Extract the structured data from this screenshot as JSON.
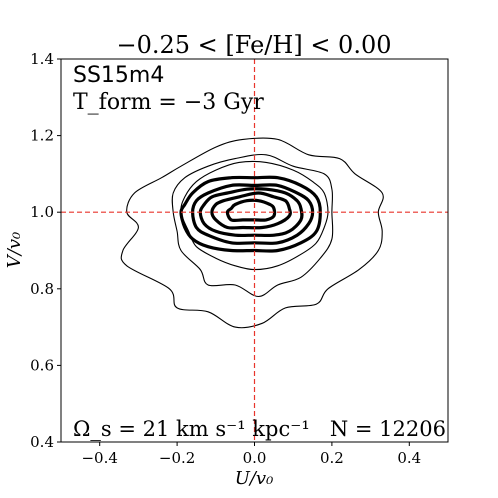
{
  "chart_data": {
    "type": "contour",
    "title": "−0.25 < [Fe/H] < 0.00",
    "xlabel": "U/v₀",
    "ylabel": "V/v₀",
    "xlim": [
      -0.5,
      0.5
    ],
    "ylim": [
      0.4,
      1.4
    ],
    "xticks": [
      -0.4,
      -0.2,
      0.0,
      0.2,
      0.4
    ],
    "xtick_labels": [
      "−0.4",
      "−0.2",
      "0.0",
      "0.2",
      "0.4"
    ],
    "yticks": [
      0.4,
      0.6,
      0.8,
      1.0,
      1.2,
      1.4
    ],
    "ytick_labels": [
      "0.4",
      "0.6",
      "0.8",
      "1.0",
      "1.2",
      "1.4"
    ],
    "grid": false,
    "reference_lines": {
      "vertical_x": 0.0,
      "horizontal_y": 1.0,
      "color": "#e8352b",
      "style": "dashed"
    },
    "annotations": {
      "model": "SS15m4",
      "tform": "T_form = −3 Gyr",
      "omega": "Ω_s = 21 km s⁻¹ kpc⁻¹",
      "n": "N = 12206"
    },
    "contour_color": "#000000",
    "contours": [
      {
        "weight": "thin",
        "points": [
          [
            -0.33,
            1.0
          ],
          [
            -0.3,
            0.96
          ],
          [
            -0.34,
            0.9
          ],
          [
            -0.33,
            0.86
          ],
          [
            -0.22,
            0.8
          ],
          [
            -0.2,
            0.75
          ],
          [
            -0.12,
            0.74
          ],
          [
            -0.05,
            0.7
          ],
          [
            0.02,
            0.71
          ],
          [
            0.08,
            0.75
          ],
          [
            0.16,
            0.76
          ],
          [
            0.19,
            0.8
          ],
          [
            0.27,
            0.85
          ],
          [
            0.32,
            0.9
          ],
          [
            0.33,
            0.95
          ],
          [
            0.32,
            1.0
          ],
          [
            0.33,
            1.05
          ],
          [
            0.26,
            1.1
          ],
          [
            0.22,
            1.14
          ],
          [
            0.14,
            1.15
          ],
          [
            0.06,
            1.19
          ],
          [
            -0.03,
            1.19
          ],
          [
            -0.1,
            1.17
          ],
          [
            -0.19,
            1.12
          ],
          [
            -0.24,
            1.09
          ],
          [
            -0.31,
            1.05
          ]
        ]
      },
      {
        "weight": "thin",
        "points": [
          [
            -0.21,
            1.0
          ],
          [
            -0.2,
            0.95
          ],
          [
            -0.19,
            0.9
          ],
          [
            -0.14,
            0.85
          ],
          [
            -0.12,
            0.81
          ],
          [
            -0.05,
            0.81
          ],
          [
            0.01,
            0.78
          ],
          [
            0.06,
            0.81
          ],
          [
            0.12,
            0.83
          ],
          [
            0.17,
            0.88
          ],
          [
            0.2,
            0.93
          ],
          [
            0.2,
            1.0
          ],
          [
            0.2,
            1.06
          ],
          [
            0.18,
            1.1
          ],
          [
            0.1,
            1.12
          ],
          [
            0.03,
            1.15
          ],
          [
            -0.05,
            1.14
          ],
          [
            -0.12,
            1.12
          ],
          [
            -0.18,
            1.09
          ],
          [
            -0.21,
            1.05
          ]
        ]
      },
      {
        "weight": "thin",
        "points": [
          [
            -0.19,
            1.0
          ],
          [
            -0.17,
            0.95
          ],
          [
            -0.15,
            0.91
          ],
          [
            -0.1,
            0.88
          ],
          [
            -0.05,
            0.86
          ],
          [
            0.0,
            0.85
          ],
          [
            0.06,
            0.86
          ],
          [
            0.12,
            0.89
          ],
          [
            0.16,
            0.92
          ],
          [
            0.18,
            0.96
          ],
          [
            0.19,
            1.0
          ],
          [
            0.18,
            1.05
          ],
          [
            0.15,
            1.08
          ],
          [
            0.1,
            1.11
          ],
          [
            0.03,
            1.13
          ],
          [
            -0.04,
            1.13
          ],
          [
            -0.1,
            1.11
          ],
          [
            -0.15,
            1.08
          ],
          [
            -0.18,
            1.04
          ]
        ]
      },
      {
        "weight": "thick",
        "points": [
          [
            -0.19,
            1.0
          ],
          [
            -0.18,
            0.96
          ],
          [
            -0.16,
            0.93
          ],
          [
            -0.12,
            0.91
          ],
          [
            -0.06,
            0.9
          ],
          [
            0.0,
            0.9
          ],
          [
            0.06,
            0.9
          ],
          [
            0.12,
            0.92
          ],
          [
            0.16,
            0.95
          ],
          [
            0.17,
            1.0
          ],
          [
            0.16,
            1.04
          ],
          [
            0.12,
            1.07
          ],
          [
            0.06,
            1.09
          ],
          [
            0.0,
            1.09
          ],
          [
            -0.06,
            1.09
          ],
          [
            -0.12,
            1.08
          ],
          [
            -0.16,
            1.05
          ],
          [
            -0.18,
            1.02
          ]
        ]
      },
      {
        "weight": "thick",
        "points": [
          [
            -0.16,
            1.0
          ],
          [
            -0.15,
            0.96
          ],
          [
            -0.12,
            0.94
          ],
          [
            -0.06,
            0.92
          ],
          [
            0.0,
            0.92
          ],
          [
            0.06,
            0.92
          ],
          [
            0.11,
            0.94
          ],
          [
            0.14,
            0.97
          ],
          [
            0.15,
            1.0
          ],
          [
            0.14,
            1.03
          ],
          [
            0.11,
            1.05
          ],
          [
            0.06,
            1.07
          ],
          [
            0.0,
            1.07
          ],
          [
            -0.06,
            1.07
          ],
          [
            -0.12,
            1.05
          ],
          [
            -0.15,
            1.03
          ]
        ]
      },
      {
        "weight": "thick",
        "points": [
          [
            -0.14,
            1.0
          ],
          [
            -0.13,
            0.97
          ],
          [
            -0.1,
            0.95
          ],
          [
            -0.05,
            0.94
          ],
          [
            0.0,
            0.94
          ],
          [
            0.05,
            0.94
          ],
          [
            0.09,
            0.95
          ],
          [
            0.12,
            0.98
          ],
          [
            0.12,
            1.01
          ],
          [
            0.11,
            1.03
          ],
          [
            0.08,
            1.05
          ],
          [
            0.03,
            1.06
          ],
          [
            -0.02,
            1.06
          ],
          [
            -0.07,
            1.05
          ],
          [
            -0.11,
            1.04
          ],
          [
            -0.13,
            1.02
          ]
        ]
      },
      {
        "weight": "thick",
        "points": [
          [
            -0.11,
            1.0
          ],
          [
            -0.1,
            0.98
          ],
          [
            -0.07,
            0.96
          ],
          [
            -0.03,
            0.96
          ],
          [
            0.02,
            0.96
          ],
          [
            0.06,
            0.97
          ],
          [
            0.09,
            0.99
          ],
          [
            0.09,
            1.01
          ],
          [
            0.08,
            1.03
          ],
          [
            0.05,
            1.04
          ],
          [
            0.01,
            1.05
          ],
          [
            -0.04,
            1.04
          ],
          [
            -0.08,
            1.03
          ],
          [
            -0.1,
            1.02
          ]
        ]
      },
      {
        "weight": "thick",
        "points": [
          [
            -0.07,
            1.0
          ],
          [
            -0.06,
            0.98
          ],
          [
            -0.03,
            0.98
          ],
          [
            0.0,
            0.98
          ],
          [
            0.03,
            0.98
          ],
          [
            0.05,
            0.99
          ],
          [
            0.05,
            1.01
          ],
          [
            0.04,
            1.02
          ],
          [
            0.01,
            1.03
          ],
          [
            -0.02,
            1.03
          ],
          [
            -0.05,
            1.02
          ],
          [
            -0.06,
            1.01
          ]
        ]
      }
    ]
  }
}
